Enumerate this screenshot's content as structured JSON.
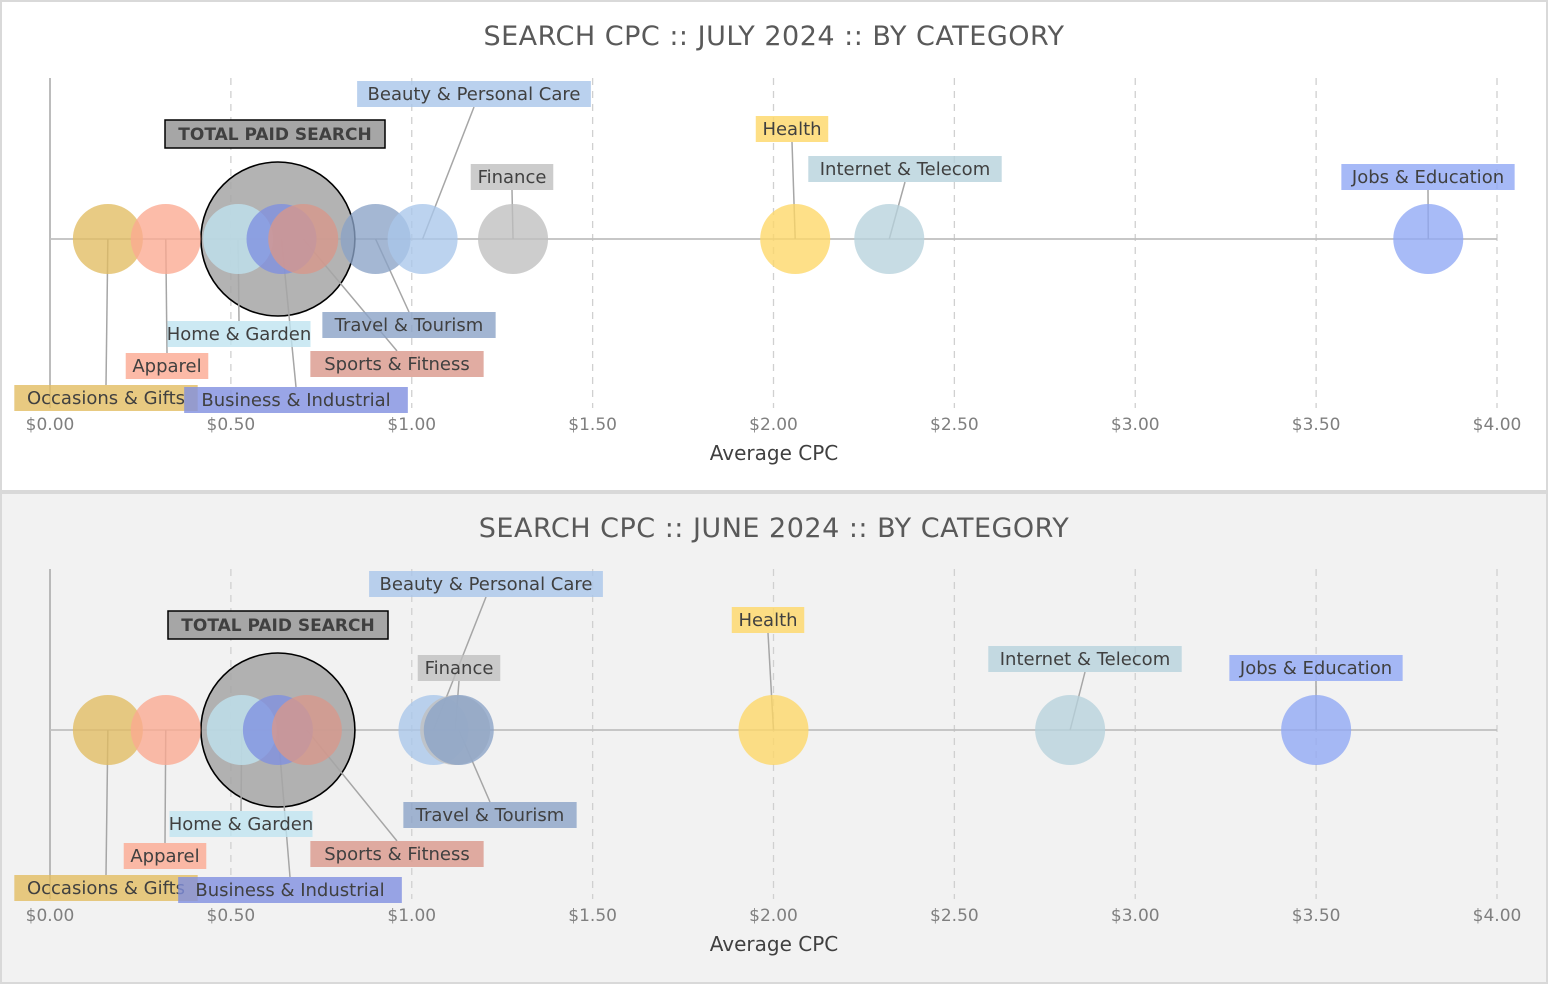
{
  "chart_data": [
    {
      "type": "bubble",
      "title": "SEARCH CPC :: JULY 2024 :: BY CATEGORY",
      "xlabel": "Average CPC",
      "xlim": [
        0,
        4
      ],
      "x_ticks": [
        "$0.00",
        "$0.50",
        "$1.00",
        "$1.50",
        "$2.00",
        "$2.50",
        "$3.00",
        "$3.50",
        "$4.00"
      ],
      "grid": "vertical dashed",
      "total": {
        "name": "TOTAL PAID SEARCH",
        "x": 0.63
      },
      "series": [
        {
          "name": "Occasions & Gifts",
          "x": 0.16,
          "color": "#e2bd62"
        },
        {
          "name": "Apparel",
          "x": 0.32,
          "color": "#fba991"
        },
        {
          "name": "Home & Garden",
          "x": 0.52,
          "color": "#bfe3f0"
        },
        {
          "name": "Business & Industrial",
          "x": 0.64,
          "color": "#7f8fe0"
        },
        {
          "name": "Sports & Fitness",
          "x": 0.7,
          "color": "#d9978b"
        },
        {
          "name": "Travel & Tourism",
          "x": 0.9,
          "color": "#8ba3c7"
        },
        {
          "name": "Beauty & Personal Care",
          "x": 1.03,
          "color": "#a9c6ea"
        },
        {
          "name": "Finance",
          "x": 1.28,
          "color": "#bfbfbf"
        },
        {
          "name": "Health",
          "x": 2.06,
          "color": "#fed766"
        },
        {
          "name": "Internet & Telecom",
          "x": 2.32,
          "color": "#b7d2dc"
        },
        {
          "name": "Jobs & Education",
          "x": 3.81,
          "color": "#90a8f5"
        }
      ]
    },
    {
      "type": "bubble",
      "title": "SEARCH CPC :: JUNE 2024 :: BY CATEGORY",
      "xlabel": "Average CPC",
      "xlim": [
        0,
        4
      ],
      "x_ticks": [
        "$0.00",
        "$0.50",
        "$1.00",
        "$1.50",
        "$2.00",
        "$2.50",
        "$3.00",
        "$3.50",
        "$4.00"
      ],
      "grid": "vertical dashed",
      "total": {
        "name": "TOTAL PAID SEARCH",
        "x": 0.63
      },
      "series": [
        {
          "name": "Occasions & Gifts",
          "x": 0.16,
          "color": "#e2bd62"
        },
        {
          "name": "Apparel",
          "x": 0.32,
          "color": "#fba991"
        },
        {
          "name": "Home & Garden",
          "x": 0.53,
          "color": "#bfe3f0"
        },
        {
          "name": "Business & Industrial",
          "x": 0.63,
          "color": "#7f8fe0"
        },
        {
          "name": "Sports & Fitness",
          "x": 0.71,
          "color": "#d9978b"
        },
        {
          "name": "Beauty & Personal Care",
          "x": 1.06,
          "color": "#a9c6ea"
        },
        {
          "name": "Finance",
          "x": 1.12,
          "color": "#bfbfbf"
        },
        {
          "name": "Travel & Tourism",
          "x": 1.13,
          "color": "#8ba3c7"
        },
        {
          "name": "Health",
          "x": 2.0,
          "color": "#fed766"
        },
        {
          "name": "Internet & Telecom",
          "x": 2.82,
          "color": "#b7d2dc"
        },
        {
          "name": "Jobs & Education",
          "x": 3.5,
          "color": "#90a8f5"
        }
      ]
    }
  ]
}
